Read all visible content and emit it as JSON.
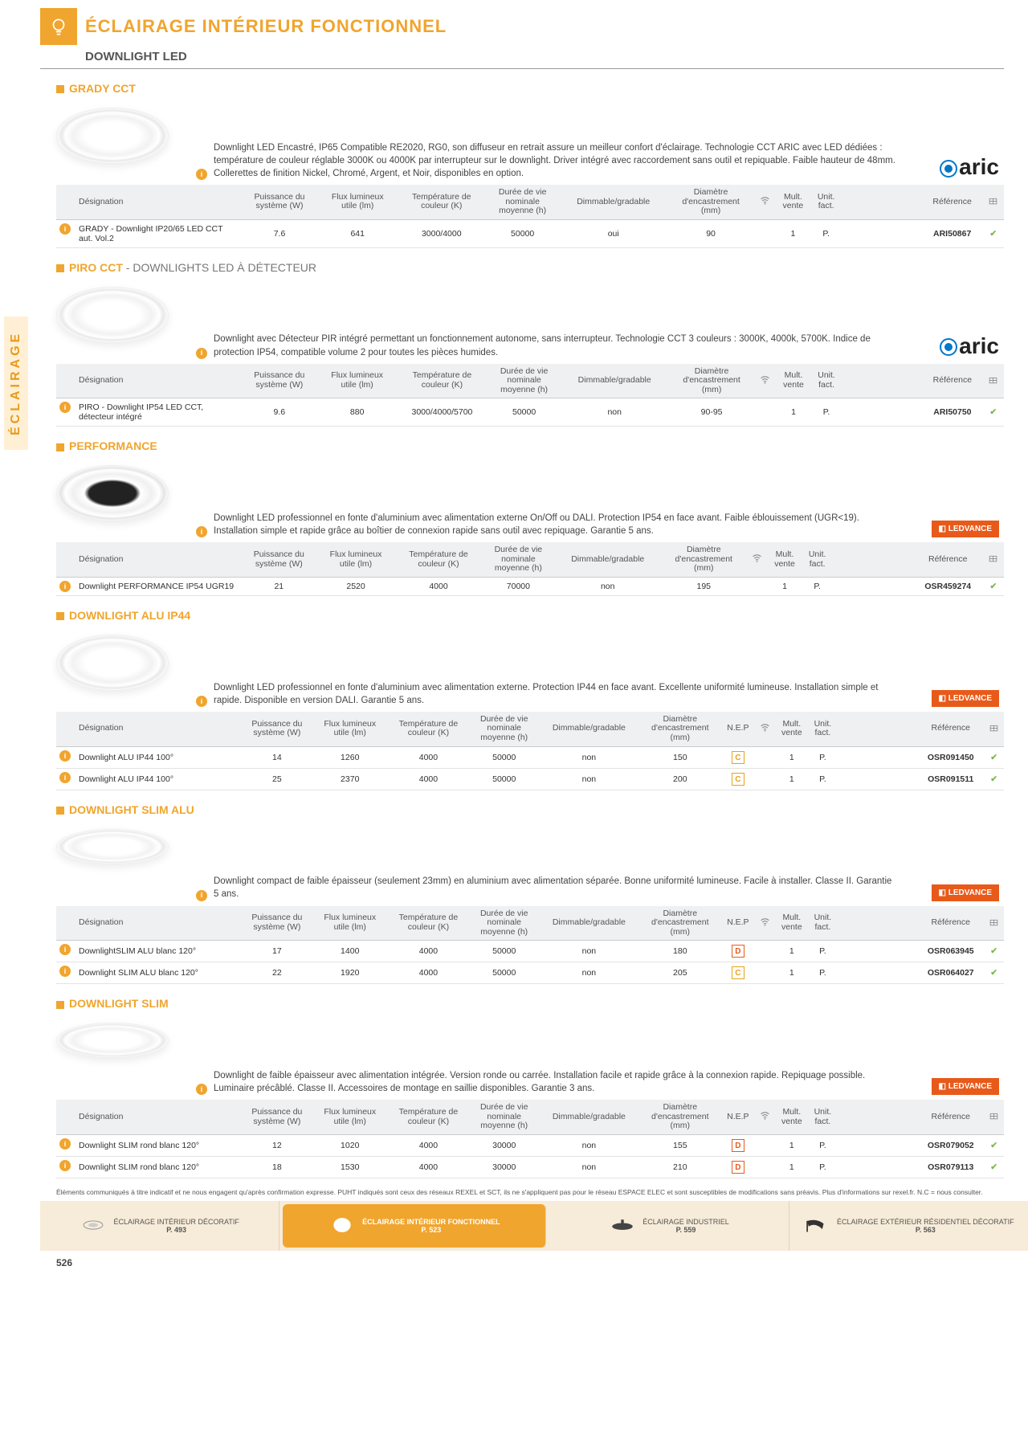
{
  "accent": "#f0a52e",
  "pageNumber": "526",
  "sideLabel": "ÉCLAIRAGE",
  "headerTitle": "ÉCLAIRAGE INTÉRIEUR FONCTIONNEL",
  "subheader": "DOWNLIGHT LED",
  "footnote": "Éléments communiqués à titre indicatif et ne nous engagent qu'après confirmation expresse. PUHT indiqués sont ceux des réseaux REXEL et SCT, ils ne s'appliquent pas pour le réseau ESPACE ELEC et sont susceptibles de modifications sans préavis. Plus d'informations sur rexel.fr. N.C = nous consulter.",
  "cols_std": {
    "c0": "Désignation",
    "c1a": "Puissance du",
    "c1b": "système (W)",
    "c2a": "Flux lumineux",
    "c2b": "utile (lm)",
    "c3a": "Température de",
    "c3b": "couleur (K)",
    "c4a": "Durée de vie",
    "c4b": "nominale",
    "c4c": "moyenne (h)",
    "c5": "Dimmable/gradable",
    "c6a": "Diamètre",
    "c6b": "d'encastrement",
    "c6c": "(mm)",
    "nep": "N.E.P",
    "c7": "",
    "c8a": "Mult.",
    "c8b": "vente",
    "c9a": "Unit.",
    "c9b": "fact.",
    "c10": "Référence",
    "c11": ""
  },
  "sections": [
    {
      "title": "GRADY CCT",
      "titleSub": "",
      "imgClass": "",
      "brand": "aric",
      "desc": "Downlight LED Encastré, IP65 Compatible RE2020, RG0, son diffuseur en retrait assure un meilleur confort d'éclairage. Technologie CCT ARIC avec LED dédiées : température de couleur réglable 3000K ou 4000K par interrupteur sur le downlight. Driver intégré avec raccordement sans outil et repiquable. Faible hauteur de 48mm. Collerettes de finition Nickel, Chromé, Argent, et Noir, disponibles en option.",
      "hasNEP": false,
      "rows": [
        {
          "d": "GRADY - Downlight IP20/65 LED CCT aut. Vol.2",
          "p": "7.6",
          "f": "641",
          "t": "3000/4000",
          "dv": "50000",
          "dim": "oui",
          "diam": "90",
          "nep": "",
          "mult": "1",
          "uf": "P.",
          "ref": "ARI50867"
        }
      ]
    },
    {
      "title": "PIRO CCT",
      "titleSub": " - DOWNLIGHTS LED À DÉTECTEUR",
      "imgClass": "",
      "brand": "aric",
      "desc": "Downlight avec Détecteur PIR intégré permettant un fonctionnement autonome, sans interrupteur. Technologie CCT 3 couleurs : 3000K, 4000k, 5700K. Indice de protection IP54, compatible volume 2 pour toutes les pièces humides.",
      "hasNEP": false,
      "rows": [
        {
          "d": "PIRO - Downlight IP54 LED CCT, détecteur intégré",
          "p": "9.6",
          "f": "880",
          "t": "3000/4000/5700",
          "dv": "50000",
          "dim": "non",
          "diam": "90-95",
          "nep": "",
          "mult": "1",
          "uf": "P.",
          "ref": "ARI50750"
        }
      ]
    },
    {
      "title": "PERFORMANCE",
      "titleSub": "",
      "imgClass": "dark",
      "brand": "ledvance",
      "desc": "Downlight LED professionnel en fonte d'aluminium avec alimentation externe On/Off ou DALI. Protection IP54 en face avant. Faible éblouissement (UGR<19). Installation simple et rapide grâce au boîtier de connexion rapide sans outil avec repiquage. Garantie 5 ans.",
      "hasNEP": false,
      "rows": [
        {
          "d": "Downlight PERFORMANCE IP54 UGR19",
          "p": "21",
          "f": "2520",
          "t": "4000",
          "dv": "70000",
          "dim": "non",
          "diam": "195",
          "nep": "",
          "mult": "1",
          "uf": "P.",
          "ref": "OSR459274"
        }
      ]
    },
    {
      "title": "DOWNLIGHT ALU IP44",
      "titleSub": "",
      "imgClass": "",
      "brand": "ledvance",
      "desc": "Downlight LED professionnel en fonte d'aluminium avec alimentation externe. Protection IP44 en face avant. Excellente uniformité lumineuse. Installation simple et rapide. Disponible en version DALI. Garantie 5 ans.",
      "hasNEP": true,
      "rows": [
        {
          "d": "Downlight ALU IP44 100°",
          "p": "14",
          "f": "1260",
          "t": "4000",
          "dv": "50000",
          "dim": "non",
          "diam": "150",
          "nep": "C",
          "mult": "1",
          "uf": "P.",
          "ref": "OSR091450"
        },
        {
          "d": "Downlight ALU IP44 100°",
          "p": "25",
          "f": "2370",
          "t": "4000",
          "dv": "50000",
          "dim": "non",
          "diam": "200",
          "nep": "C",
          "mult": "1",
          "uf": "P.",
          "ref": "OSR091511"
        }
      ]
    },
    {
      "title": "DOWNLIGHT SLIM ALU",
      "titleSub": "",
      "imgClass": "slim",
      "brand": "ledvance",
      "desc": "Downlight compact de faible épaisseur (seulement 23mm) en aluminium avec alimentation séparée. Bonne uniformité lumineuse. Facile à installer. Classe II. Garantie 5 ans.",
      "hasNEP": true,
      "rows": [
        {
          "d": "DownlightSLIM ALU blanc 120°",
          "p": "17",
          "f": "1400",
          "t": "4000",
          "dv": "50000",
          "dim": "non",
          "diam": "180",
          "nep": "D",
          "mult": "1",
          "uf": "P.",
          "ref": "OSR063945"
        },
        {
          "d": "Downlight SLIM ALU blanc 120°",
          "p": "22",
          "f": "1920",
          "t": "4000",
          "dv": "50000",
          "dim": "non",
          "diam": "205",
          "nep": "C",
          "mult": "1",
          "uf": "P.",
          "ref": "OSR064027"
        }
      ]
    },
    {
      "title": "DOWNLIGHT SLIM",
      "titleSub": "",
      "imgClass": "slim",
      "brand": "ledvance",
      "desc": "Downlight de faible épaisseur avec alimentation intégrée. Version ronde ou carrée. Installation facile et rapide grâce à la connexion rapide. Repiquage possible. Luminaire précâblé. Classe II. Accessoires de montage en saillie disponibles. Garantie 3 ans.",
      "hasNEP": true,
      "rows": [
        {
          "d": "Downlight SLIM rond blanc 120°",
          "p": "12",
          "f": "1020",
          "t": "4000",
          "dv": "30000",
          "dim": "non",
          "diam": "155",
          "nep": "D",
          "mult": "1",
          "uf": "P.",
          "ref": "OSR079052"
        },
        {
          "d": "Downlight SLIM rond blanc 120°",
          "p": "18",
          "f": "1530",
          "t": "4000",
          "dv": "30000",
          "dim": "non",
          "diam": "210",
          "nep": "D",
          "mult": "1",
          "uf": "P.",
          "ref": "OSR079113"
        }
      ]
    }
  ],
  "footerNav": [
    {
      "label": "ÉCLAIRAGE INTÉRIEUR DÉCORATIF",
      "page": "P. 493",
      "active": false
    },
    {
      "label": "ÉCLAIRAGE INTÉRIEUR FONCTIONNEL",
      "page": "P. 523",
      "active": true
    },
    {
      "label": "ÉCLAIRAGE INDUSTRIEL",
      "page": "P. 559",
      "active": false
    },
    {
      "label": "ÉCLAIRAGE EXTÉRIEUR RÉSIDENTIEL DÉCORATIF",
      "page": "P. 563",
      "active": false
    }
  ]
}
